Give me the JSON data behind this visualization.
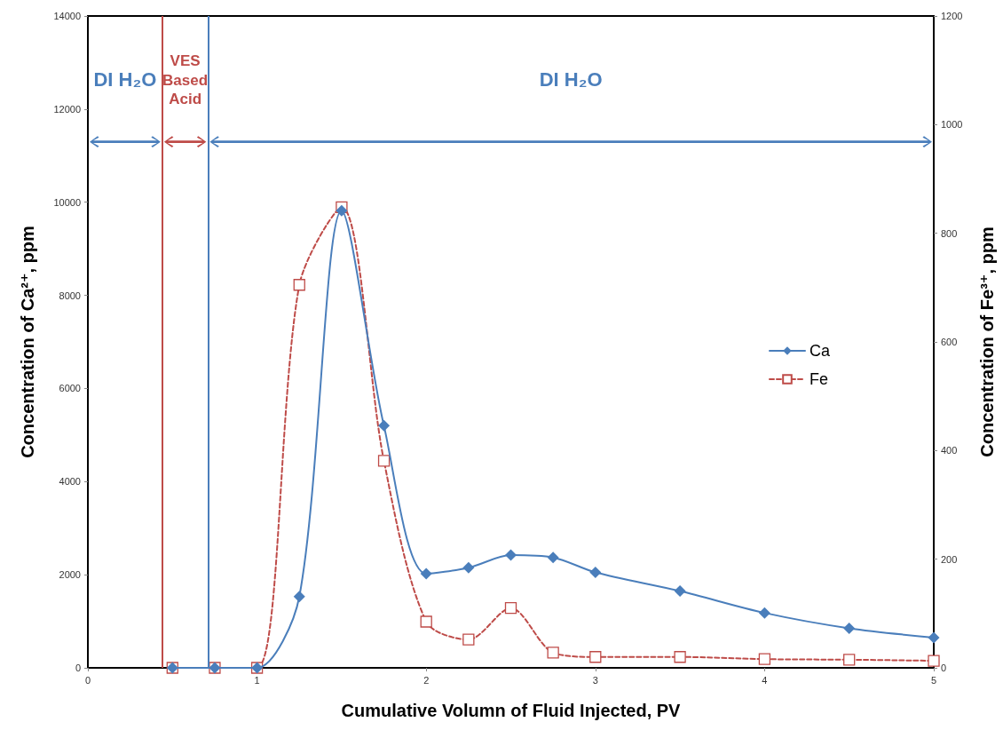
{
  "chart_data": {
    "type": "line",
    "xlabel": "Cumulative Volumn of Fluid Injected, PV",
    "ylabel": "Concentration of Ca²⁺, ppm",
    "y2label": "Concentration of Fe³⁺, ppm",
    "x": [
      0.5,
      0.75,
      1,
      1.25,
      1.5,
      1.75,
      2,
      2.25,
      2.5,
      2.75,
      3,
      3.5,
      4,
      4.5,
      5
    ],
    "series": [
      {
        "name": "Ca",
        "color": "#4a7ebb",
        "marker": "diamond",
        "line_style": "solid",
        "values": [
          0,
          0,
          0,
          1530,
          9820,
          5200,
          2020,
          2150,
          2420,
          2370,
          2050,
          1650,
          1180,
          850,
          650
        ]
      },
      {
        "name": "Fe",
        "color": "#be4b48",
        "marker": "square",
        "line_style": "dashed",
        "axis": "y2",
        "values": [
          0,
          0,
          0,
          705,
          848,
          381,
          85,
          52,
          110,
          28,
          20,
          20,
          16,
          15,
          13
        ]
      }
    ],
    "xlim": [
      0,
      5
    ],
    "xticks": [
      0,
      1,
      2,
      3,
      4,
      5
    ],
    "ylim": [
      0,
      14000
    ],
    "yticks": [
      0,
      2000,
      4000,
      6000,
      8000,
      10000,
      12000,
      14000
    ],
    "y2lim": [
      0,
      1200
    ],
    "y2ticks": [
      0,
      200,
      400,
      600,
      800,
      1000,
      1200
    ],
    "ref_lines": [
      {
        "axis": "x",
        "value": 0.44,
        "label": null,
        "color": "#be4b48"
      },
      {
        "axis": "x",
        "value": 0.71,
        "label": null,
        "color": "#4a7ebb"
      }
    ],
    "annotations": [
      "DI H₂O",
      "VES Based Acid",
      "DI H₂O"
    ],
    "grid": false,
    "legend": "right"
  }
}
